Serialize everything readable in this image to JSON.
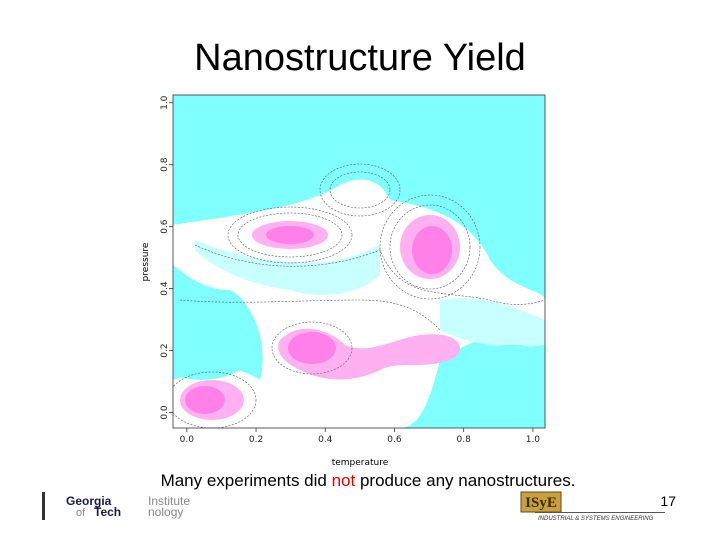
{
  "title": "Nanostructure Yield",
  "chart_data": {
    "type": "contour",
    "x_label": "temperature",
    "y_label": "pressure",
    "xlim": [
      -0.04,
      1.035
    ],
    "ylim": [
      -0.05,
      1.025
    ],
    "xticks": [
      {
        "value": 0,
        "label": "0.0"
      },
      0.2,
      0.4,
      0.6,
      0.8,
      {
        "value": 1,
        "label": "1.0"
      }
    ],
    "yticks": [
      {
        "value": 0,
        "label": "0.0"
      },
      0.2,
      0.4,
      0.6,
      0.8,
      {
        "value": 1,
        "label": "1.0"
      }
    ]
  },
  "caption": {
    "before": "Many experiments did ",
    "emphasis": "not",
    "after": " produce any nanostructures."
  },
  "page_number": "17",
  "logos": {
    "left": [
      "Georgia",
      "Institute",
      "of",
      "Tech",
      "nology"
    ],
    "right": {
      "name": "ISyE",
      "department": "INDUSTRIAL & SYSTEMS ENGINEERING"
    }
  }
}
